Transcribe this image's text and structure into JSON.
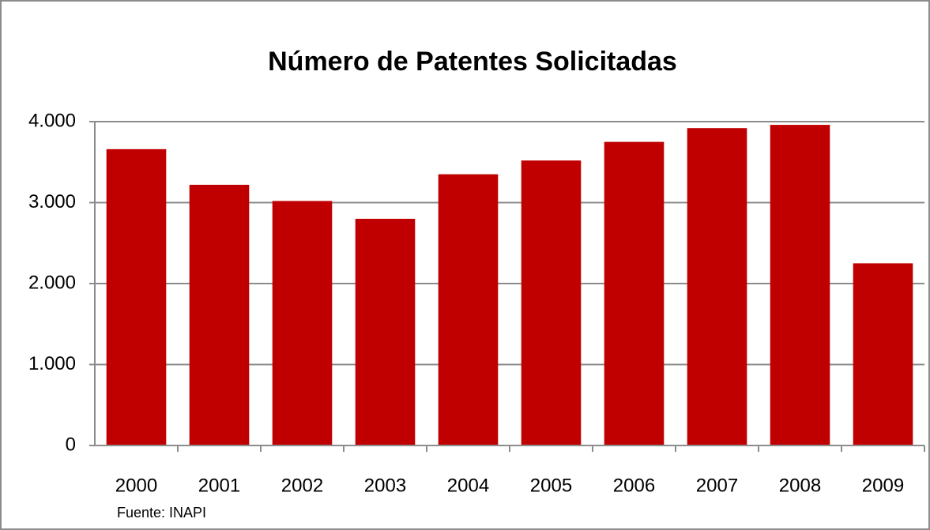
{
  "chart_data": {
    "type": "bar",
    "title": "Número de Patentes Solicitadas",
    "categories": [
      "2000",
      "2001",
      "2002",
      "2003",
      "2004",
      "2005",
      "2006",
      "2007",
      "2008",
      "2009"
    ],
    "values": [
      3660,
      3220,
      3020,
      2800,
      3350,
      3520,
      3750,
      3920,
      3960,
      2250
    ],
    "color": "#c00000",
    "ylim": [
      0,
      4000
    ],
    "yticks": [
      0,
      {
        "value": 1000,
        "label": "1.000"
      },
      {
        "value": 2000,
        "label": "2.000"
      },
      {
        "value": 3000,
        "label": "3.000"
      },
      {
        "value": 4000,
        "label": "4.000"
      }
    ],
    "grid": true,
    "source": "Fuente: INAPI"
  }
}
